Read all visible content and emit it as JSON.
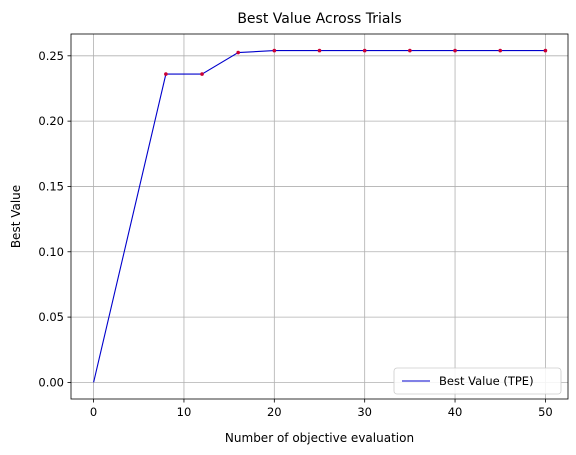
{
  "chart_data": {
    "type": "line",
    "title": "Best Value Across Trials",
    "xlabel": "Number of objective evaluation",
    "ylabel": "Best Value",
    "xlim": [
      -2.5,
      52.5
    ],
    "ylim": [
      -0.0127,
      0.2667
    ],
    "xticks": [
      0,
      10,
      20,
      30,
      40,
      50
    ],
    "xtick_labels": [
      "0",
      "10",
      "20",
      "30",
      "40",
      "50"
    ],
    "yticks": [
      0.0,
      0.05,
      0.1,
      0.15,
      0.2,
      0.25
    ],
    "ytick_labels": [
      "0.00",
      "0.05",
      "0.10",
      "0.15",
      "0.20",
      "0.25"
    ],
    "grid": true,
    "legend_position": "bottom-right",
    "series": [
      {
        "name": "Best Value (TPE)",
        "color": "#0000cc",
        "marker_color": "#cc0033",
        "x": [
          0,
          8,
          12,
          16,
          20,
          25,
          30,
          35,
          40,
          45,
          50
        ],
        "y": [
          0.0,
          0.236,
          0.236,
          0.2525,
          0.254,
          0.254,
          0.254,
          0.254,
          0.254,
          0.254,
          0.254
        ]
      }
    ]
  }
}
